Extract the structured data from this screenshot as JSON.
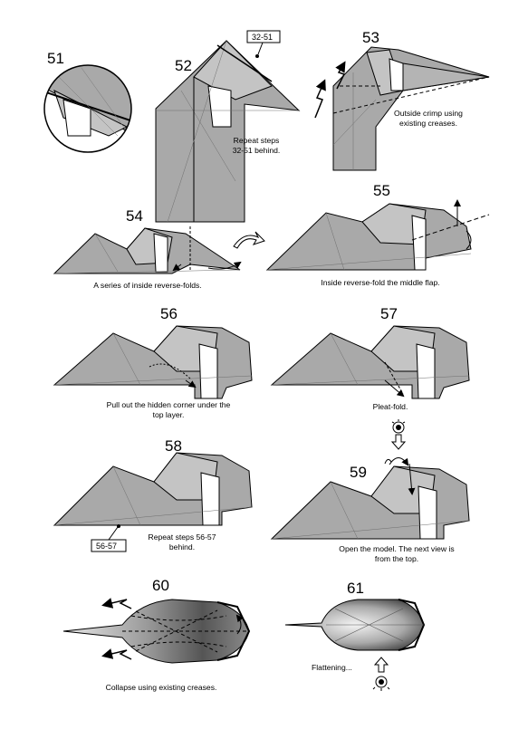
{
  "steps": [
    {
      "id": "51",
      "caption_lines": []
    },
    {
      "id": "52",
      "caption_lines": [
        "Repeat steps",
        "32-51 behind."
      ],
      "ref": "32-51"
    },
    {
      "id": "53",
      "caption_lines": [
        "Outside crimp using",
        "existing creases."
      ]
    },
    {
      "id": "54",
      "caption_lines": [
        "A series of inside reverse-folds."
      ]
    },
    {
      "id": "55",
      "caption_lines": [
        "Inside reverse-fold the middle flap."
      ]
    },
    {
      "id": "56",
      "caption_lines": [
        "Pull out the hidden corner under the",
        "top layer."
      ]
    },
    {
      "id": "57",
      "caption_lines": [
        "Pleat-fold."
      ]
    },
    {
      "id": "58",
      "caption_lines": [
        "Repeat steps 56-57",
        "behind."
      ],
      "ref": "56-57"
    },
    {
      "id": "59",
      "caption_lines": [
        "Open the model. The next view is",
        "from the top."
      ]
    },
    {
      "id": "60",
      "caption_lines": [
        "Collapse using existing creases."
      ]
    },
    {
      "id": "61",
      "caption_lines": [
        "Flattening..."
      ]
    }
  ],
  "colors": {
    "paper": "#a9a9a9",
    "paper_light": "#c4c4c4",
    "paper_white": "#ffffff",
    "line": "#000000",
    "crease": "#6e6e6e"
  },
  "icons": [
    "eye-icon",
    "arrow-icon",
    "zigzag-icon",
    "turn-over-icon"
  ]
}
